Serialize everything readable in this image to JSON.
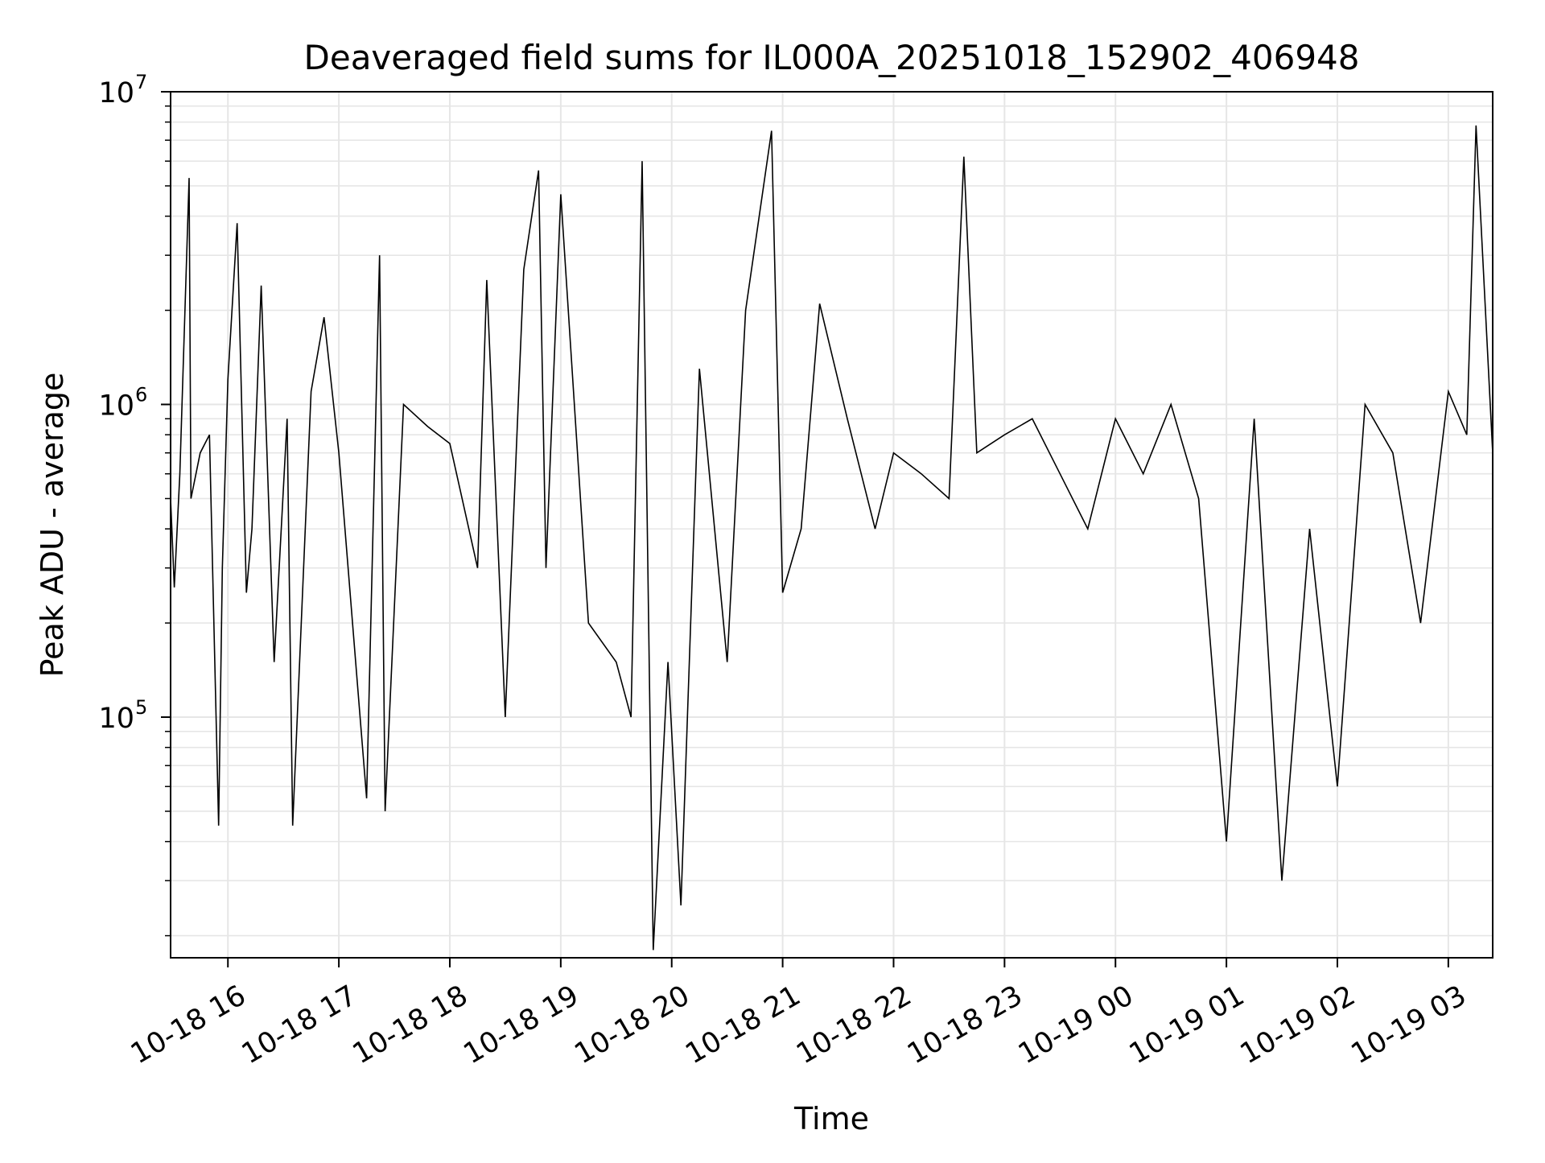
{
  "chart_data": {
    "type": "line",
    "title": "Deaveraged field sums for IL000A_20251018_152902_406948",
    "xlabel": "Time",
    "ylabel": "Peak ADU - average",
    "y_scale": "log",
    "ylim": [
      17000,
      10000000
    ],
    "xlim": [
      "2025-10-18 15:29",
      "2025-10-19 03:24"
    ],
    "grid": true,
    "line_color": "#000000",
    "grid_color": "#e6e6e6",
    "x_tick_labels": [
      "10-18 16",
      "10-18 17",
      "10-18 18",
      "10-18 19",
      "10-18 20",
      "10-18 21",
      "10-18 22",
      "10-18 23",
      "10-19 00",
      "10-19 01",
      "10-19 02",
      "10-19 03"
    ],
    "x_tick_values": [
      "2025-10-18 16:00",
      "2025-10-18 17:00",
      "2025-10-18 18:00",
      "2025-10-18 19:00",
      "2025-10-18 20:00",
      "2025-10-18 21:00",
      "2025-10-18 22:00",
      "2025-10-18 23:00",
      "2025-10-19 00:00",
      "2025-10-19 01:00",
      "2025-10-19 02:00",
      "2025-10-19 03:00"
    ],
    "y_tick_labels": [
      {
        "base": "10",
        "exp": "5"
      },
      {
        "base": "10",
        "exp": "6"
      },
      {
        "base": "10",
        "exp": "7"
      }
    ],
    "y_tick_values": [
      100000,
      1000000,
      10000000
    ],
    "series": [
      {
        "name": "",
        "x": [
          "2025-10-18 15:29",
          "2025-10-18 15:31",
          "2025-10-18 15:34",
          "2025-10-18 15:39",
          "2025-10-18 15:40",
          "2025-10-18 15:45",
          "2025-10-18 15:50",
          "2025-10-18 15:55",
          "2025-10-18 15:57",
          "2025-10-18 16:00",
          "2025-10-18 16:05",
          "2025-10-18 16:10",
          "2025-10-18 16:13",
          "2025-10-18 16:18",
          "2025-10-18 16:25",
          "2025-10-18 16:32",
          "2025-10-18 16:35",
          "2025-10-18 16:45",
          "2025-10-18 16:52",
          "2025-10-18 17:00",
          "2025-10-18 17:15",
          "2025-10-18 17:22",
          "2025-10-18 17:25",
          "2025-10-18 17:35",
          "2025-10-18 17:48",
          "2025-10-18 18:00",
          "2025-10-18 18:15",
          "2025-10-18 18:20",
          "2025-10-18 18:30",
          "2025-10-18 18:40",
          "2025-10-18 18:48",
          "2025-10-18 18:52",
          "2025-10-18 19:00",
          "2025-10-18 19:15",
          "2025-10-18 19:30",
          "2025-10-18 19:38",
          "2025-10-18 19:44",
          "2025-10-18 19:50",
          "2025-10-18 19:58",
          "2025-10-18 20:05",
          "2025-10-18 20:15",
          "2025-10-18 20:30",
          "2025-10-18 20:40",
          "2025-10-18 20:54",
          "2025-10-18 21:00",
          "2025-10-18 21:10",
          "2025-10-18 21:20",
          "2025-10-18 21:35",
          "2025-10-18 21:50",
          "2025-10-18 22:00",
          "2025-10-18 22:15",
          "2025-10-18 22:30",
          "2025-10-18 22:38",
          "2025-10-18 22:45",
          "2025-10-18 23:00",
          "2025-10-18 23:15",
          "2025-10-18 23:30",
          "2025-10-18 23:45",
          "2025-10-19 00:00",
          "2025-10-19 00:15",
          "2025-10-19 00:30",
          "2025-10-19 00:45",
          "2025-10-19 01:00",
          "2025-10-19 01:15",
          "2025-10-19 01:30",
          "2025-10-19 01:45",
          "2025-10-19 02:00",
          "2025-10-19 02:15",
          "2025-10-19 02:30",
          "2025-10-19 02:45",
          "2025-10-19 03:00",
          "2025-10-19 03:10",
          "2025-10-19 03:15",
          "2025-10-19 03:24"
        ],
        "y": [
          500000,
          260000,
          600000,
          5300000,
          500000,
          700000,
          800000,
          45000,
          300000,
          1200000,
          3800000,
          250000,
          400000,
          2400000,
          150000,
          900000,
          45000,
          1100000,
          1900000,
          700000,
          55000,
          3000000,
          50000,
          1000000,
          850000,
          750000,
          300000,
          2500000,
          100000,
          2700000,
          5600000,
          300000,
          4700000,
          200000,
          150000,
          100000,
          6000000,
          18000,
          150000,
          25000,
          1300000,
          150000,
          2000000,
          7500000,
          250000,
          400000,
          2100000,
          900000,
          400000,
          700000,
          600000,
          500000,
          6200000,
          700000,
          800000,
          900000,
          600000,
          400000,
          900000,
          600000,
          1000000,
          500000,
          40000,
          900000,
          30000,
          400000,
          60000,
          1000000,
          700000,
          200000,
          1100000,
          800000,
          7800000,
          700000
        ]
      }
    ]
  }
}
